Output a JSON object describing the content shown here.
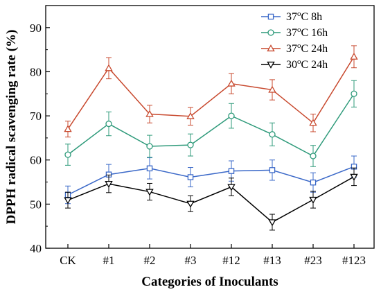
{
  "chart_data": {
    "type": "line",
    "title": "",
    "xlabel": "Categories of Inoculants",
    "ylabel": "DPPH radical scavenging rate (%)",
    "ylim": [
      40,
      95
    ],
    "yticks": [
      "40",
      "50",
      "60",
      "70",
      "80",
      "90"
    ],
    "categories": [
      "CK",
      "#1",
      "#2",
      "#3",
      "#12",
      "#13",
      "#23",
      "#123"
    ],
    "grid": false,
    "legend_position": "top-right",
    "series": [
      {
        "name": "37°C 8h",
        "legend": {
          "pre": "37",
          "sup": "o",
          "post": "C 8h"
        },
        "color": "#3a68c8",
        "marker": "square",
        "values": [
          52.1,
          56.7,
          58.1,
          56.1,
          57.5,
          57.7,
          54.9,
          58.5
        ],
        "errors": [
          2.0,
          2.3,
          2.4,
          2.2,
          2.3,
          2.3,
          2.2,
          2.4
        ]
      },
      {
        "name": "37°C 16h",
        "legend": {
          "pre": "37",
          "sup": "o",
          "post": "C 16h"
        },
        "color": "#2e9a7a",
        "marker": "circle",
        "values": [
          61.2,
          68.2,
          63.1,
          63.4,
          70.0,
          65.8,
          60.9,
          75.0
        ],
        "errors": [
          2.4,
          2.7,
          2.5,
          2.5,
          2.8,
          2.6,
          2.4,
          3.0
        ]
      },
      {
        "name": "37°C 24h",
        "legend": {
          "pre": "37",
          "sup": "o",
          "post": "C 24h"
        },
        "color": "#c8492e",
        "marker": "triangle-up",
        "values": [
          67.0,
          80.8,
          70.4,
          69.9,
          77.3,
          75.9,
          68.4,
          83.4
        ],
        "errors": [
          1.8,
          2.4,
          2.0,
          2.0,
          2.3,
          2.3,
          2.0,
          2.5
        ]
      },
      {
        "name": "30°C 24h",
        "legend": {
          "pre": "30",
          "sup": "o",
          "post": "C 24h"
        },
        "color": "#000000",
        "marker": "triangle-down",
        "values": [
          50.9,
          54.6,
          52.8,
          50.1,
          53.9,
          45.9,
          51.0,
          56.2
        ],
        "errors": [
          1.8,
          2.0,
          1.9,
          1.8,
          2.0,
          1.8,
          1.9,
          2.0
        ]
      }
    ]
  }
}
